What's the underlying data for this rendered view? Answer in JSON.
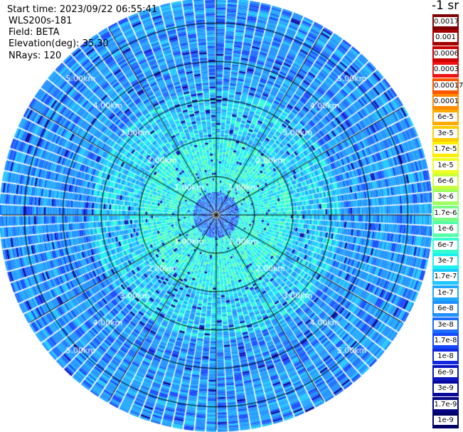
{
  "header": {
    "start_time": "Start time: 2023/09/22 06:55:41",
    "instrument": "WLS200s-181",
    "field": "Field: BETA",
    "elevation": "Elevation(deg): 35.30",
    "nrays": "NRays: 120"
  },
  "colorbar": {
    "title": "-1 sr",
    "labels": [
      "0.0017",
      "0.001",
      "0.0006",
      "0.0003",
      "0.00017",
      "0.0001",
      "6e-5",
      "3e-5",
      "1.7e-5",
      "1e-5",
      "6e-6",
      "3e-6",
      "1.7e-6",
      "1e-6",
      "6e-7",
      "3e-7",
      "1.7e-7",
      "1e-7",
      "6e-8",
      "3e-8",
      "1.7e-8",
      "1e-8",
      "6e-9",
      "3e-9",
      "1.7e-9",
      "1e-9"
    ],
    "colors": [
      "#7f0000",
      "#a50000",
      "#cc0000",
      "#ee1111",
      "#ff5500",
      "#ff8c00",
      "#ffaa00",
      "#ffcc00",
      "#ffee00",
      "#eeff22",
      "#c8ff3a",
      "#a0ff60",
      "#7aff86",
      "#55ffaa",
      "#33ffd0",
      "#1ef0f0",
      "#1ec8ff",
      "#1ea8ff",
      "#1e90ff",
      "#1a6cff",
      "#1448ff",
      "#1028e0",
      "#0c14c0",
      "#08089c",
      "#050580",
      "#020266"
    ]
  },
  "chart_data": {
    "type": "ppi",
    "field": "BETA",
    "units": "sr-1",
    "elevation_deg": 35.3,
    "n_rays": 120,
    "range_rings_km": [
      1.0,
      2.0,
      3.0,
      4.0,
      5.0
    ],
    "range_ring_labels": [
      "1.00km",
      "2.00km",
      "3.00km",
      "4.00km",
      "5.00km"
    ],
    "spokes_every_deg": 30
  }
}
